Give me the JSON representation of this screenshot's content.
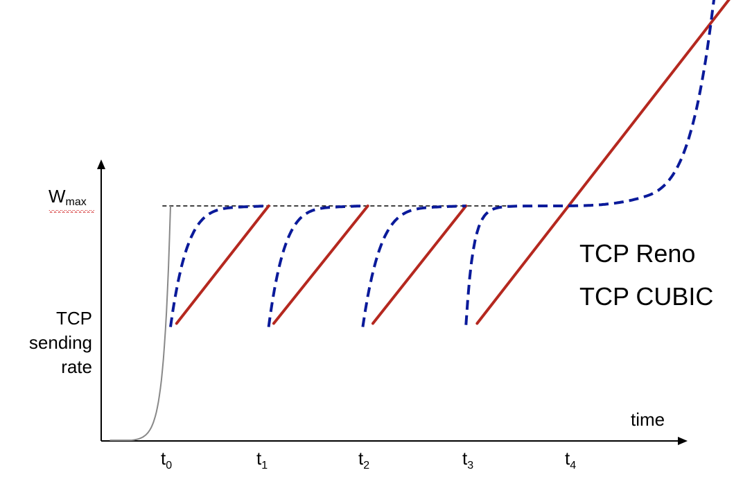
{
  "chart_data": {
    "type": "line",
    "title": "",
    "xlabel": "time",
    "ylabel_lines": [
      "TCP",
      "sending",
      "rate"
    ],
    "y_marker": {
      "main": "W",
      "sub": "max",
      "value": 1.0
    },
    "x_ticks": [
      {
        "main": "t",
        "sub": "0",
        "x": 0
      },
      {
        "main": "t",
        "sub": "1",
        "x": 1
      },
      {
        "main": "t",
        "sub": "2",
        "x": 2
      },
      {
        "main": "t",
        "sub": "3",
        "x": 3
      },
      {
        "main": "t",
        "sub": "4",
        "x": 4
      }
    ],
    "legend": {
      "placement": "right",
      "entries": [
        "TCP Reno",
        "TCP CUBIC"
      ]
    },
    "grid": false,
    "xlim": [
      -0.65,
      5.8
    ],
    "ylim": [
      0,
      1.7
    ],
    "colors": {
      "reno": "#b5281f",
      "cubic": "#0a1a9a",
      "slow_start": "#888888",
      "wmax_line": "#000000"
    },
    "series": [
      {
        "name": "TCP Reno",
        "style": "solid",
        "segments": [
          [
            [
              0.06,
              0.5
            ],
            [
              0.97,
              1.0
            ]
          ],
          [
            [
              1.02,
              0.5
            ],
            [
              1.95,
              1.0
            ]
          ],
          [
            [
              2.0,
              0.5
            ],
            [
              2.92,
              1.0
            ]
          ],
          [
            [
              3.03,
              0.5
            ],
            [
              5.65,
              1.95
            ]
          ]
        ]
      },
      {
        "name": "TCP CUBIC",
        "style": "dashed",
        "segments": [
          {
            "start": 0.0,
            "end": 0.97,
            "low": 0.5
          },
          {
            "start": 0.97,
            "end": 1.9,
            "low": 0.5
          },
          {
            "start": 1.9,
            "end": 2.92,
            "low": 0.5
          },
          {
            "start": 2.92,
            "end": 5.45,
            "low": 0.5,
            "convex": true
          }
        ]
      }
    ]
  }
}
